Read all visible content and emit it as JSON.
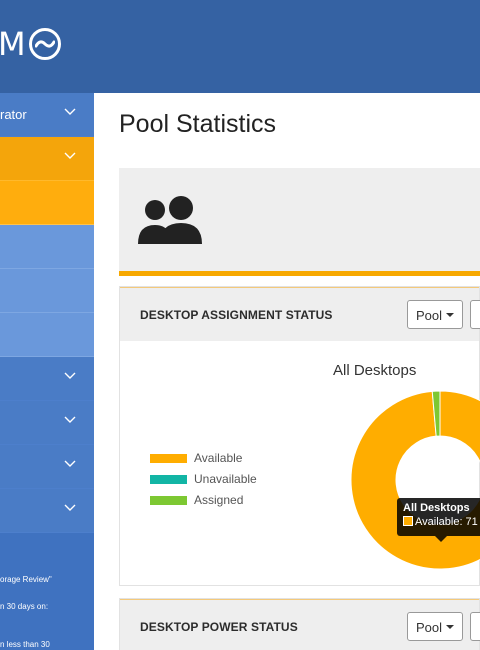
{
  "brand": {
    "logo_text": "M",
    "logo_icon": "wave-circle-icon"
  },
  "sidebar": {
    "items": [
      {
        "label": "rator",
        "has_chevron": true
      },
      {
        "label": "",
        "has_chevron": true
      },
      {
        "label": ""
      },
      {
        "label": ""
      },
      {
        "label": ""
      },
      {
        "label": ""
      },
      {
        "label": "",
        "has_chevron": true
      },
      {
        "label": "",
        "has_chevron": true
      },
      {
        "label": "",
        "has_chevron": true
      },
      {
        "label": "",
        "has_chevron": true
      }
    ],
    "notes": [
      "orage Review\"",
      "n 30 days on:",
      "n less than 30"
    ]
  },
  "page": {
    "title": "Pool Statistics"
  },
  "stats": {
    "icon": "users-icon"
  },
  "assignment": {
    "title": "DESKTOP ASSIGNMENT STATUS",
    "pool_button": "Pool",
    "chart_title": "All Desktops",
    "legend": [
      {
        "label": "Available",
        "color": "#ffad00"
      },
      {
        "label": "Unavailable",
        "color": "#12b5a5"
      },
      {
        "label": "Assigned",
        "color": "#7dc832"
      }
    ],
    "tooltip": {
      "title": "All Desktops",
      "text": "Available: 71"
    }
  },
  "power": {
    "title": "DESKTOP POWER STATUS",
    "pool_button": "Pool"
  },
  "colors": {
    "header_blue": "#3562a3",
    "sidebar_blue": "#3f72c0",
    "accent_orange": "#f7a800"
  },
  "chart_data": {
    "type": "pie",
    "title": "All Desktops",
    "categories": [
      "Available",
      "Unavailable",
      "Assigned"
    ],
    "values": [
      71,
      0,
      1
    ],
    "colors": [
      "#ffad00",
      "#12b5a5",
      "#7dc832"
    ],
    "donut": true,
    "legend_position": "left"
  }
}
